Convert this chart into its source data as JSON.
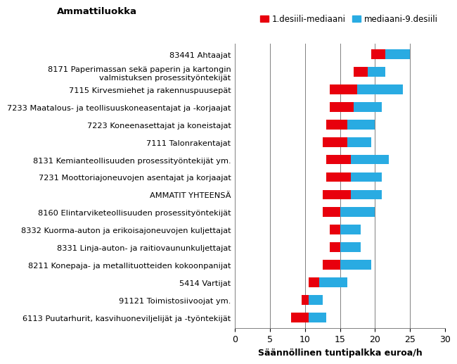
{
  "title": "Ammattiluokka",
  "xlabel": "Säännöllinen tuntipalkka euroa/h",
  "xlim": [
    0,
    30
  ],
  "xticks": [
    0,
    5,
    10,
    15,
    20,
    25,
    30
  ],
  "categories": [
    "83441 Ahtaajat",
    "8171 Paperimassan sekä paperin ja kartongin\nvalmistuksen prosessityöntekijät",
    "7115 Kirvesmiehet ja rakennuspuusepät",
    "7233 Maatalous- ja teollisuuskoneasentajat ja -korjaajat",
    "7223 Koneenasettajat ja koneistajat",
    "7111 Talonrakentajat",
    "8131 Kemianteollisuuden prosessityöntekijät ym.",
    "7231 Moottoriajoneuvojen asentajat ja korjaajat",
    "AMMATIT YHTEENSÄ",
    "8160 Elintarviketeollisuuden prosessityöntekijät",
    "8332 Kuorma-auton ja erikoisajoneuvojen kuljettajat",
    "8331 Linja-auton- ja raitiovaununkuljettajat",
    "8211 Konepaja- ja metallituotteiden kokoonpanijat",
    "5414 Vartijat",
    "91121 Toimistosiivoojat ym.",
    "6113 Puutarhurit, kasvihuoneviljelijät ja -työntekijät"
  ],
  "d1": [
    19.5,
    17.0,
    13.5,
    13.5,
    13.0,
    12.5,
    13.0,
    13.0,
    12.5,
    12.5,
    13.5,
    13.5,
    12.5,
    10.5,
    9.5,
    8.0
  ],
  "median": [
    21.5,
    19.0,
    17.5,
    17.0,
    16.0,
    16.0,
    16.5,
    16.5,
    16.5,
    15.0,
    15.0,
    15.0,
    15.0,
    12.0,
    10.5,
    10.5
  ],
  "d9": [
    25.0,
    21.5,
    24.0,
    21.0,
    20.0,
    19.5,
    22.0,
    21.0,
    21.0,
    20.0,
    18.0,
    18.0,
    19.5,
    16.0,
    12.5,
    13.0
  ],
  "red_color": "#e8000d",
  "blue_color": "#29abe2",
  "bar_height": 0.55,
  "legend_labels": [
    "1.desiili-mediaani",
    "mediaani-9.desiili"
  ],
  "grid_color": "#808080",
  "title_fontsize": 9.5,
  "xlabel_fontsize": 9,
  "tick_fontsize": 9,
  "label_fontsize": 8.2,
  "legend_fontsize": 8.5
}
